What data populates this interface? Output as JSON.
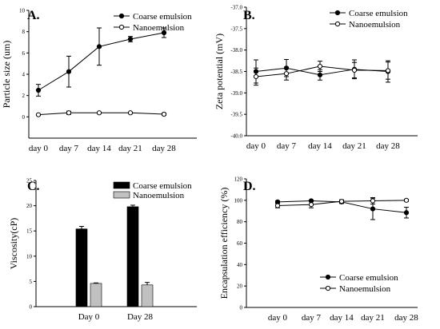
{
  "chart_data": [
    {
      "panel": "A.",
      "type": "line",
      "categories": [
        "day 0",
        "day 7",
        "day 14",
        "day 21",
        "day 28"
      ],
      "ylabel": "Particle size (um)",
      "ylim": [
        -2,
        10
      ],
      "yticks": [
        0,
        2,
        4,
        6,
        8,
        10
      ],
      "legend_position": "top-right",
      "series": [
        {
          "name": "Coarse emulsion",
          "marker": "filled-circle",
          "values": [
            2.5,
            4.25,
            6.6,
            7.3,
            7.9
          ],
          "errors": [
            0.55,
            1.45,
            1.75,
            0.25,
            0.45
          ]
        },
        {
          "name": "Nanoemulsion",
          "marker": "open-circle",
          "values": [
            0.2,
            0.38,
            0.38,
            0.38,
            0.25
          ],
          "errors": [
            0.05,
            0.15,
            0.05,
            0.05,
            0.1
          ]
        }
      ]
    },
    {
      "panel": "B.",
      "type": "line",
      "categories": [
        "day 0",
        "day 7",
        "day 14",
        "day 21",
        "day 28"
      ],
      "ylabel": "Zeta potential (mV)",
      "ylim": [
        -40.0,
        -37.0
      ],
      "yticks": [
        -40.0,
        -39.5,
        -39.0,
        -38.5,
        -38.0,
        -37.5,
        -37.0
      ],
      "legend_position": "top-right",
      "series": [
        {
          "name": "Coarse emulsion",
          "marker": "filled-circle",
          "values": [
            -38.5,
            -38.42,
            -38.58,
            -38.45,
            -38.5
          ],
          "errors": [
            0.27,
            0.2,
            0.12,
            0.22,
            0.25
          ]
        },
        {
          "name": "Nanoemulsion",
          "marker": "open-circle",
          "values": [
            -38.62,
            -38.55,
            -38.38,
            -38.47,
            -38.48
          ],
          "errors": [
            0.2,
            0.15,
            0.12,
            0.18,
            0.2
          ]
        }
      ]
    },
    {
      "panel": "C.",
      "type": "bar",
      "categories": [
        "Day 0",
        "Day 28"
      ],
      "ylabel": "Viscosity(cP)",
      "ylim": [
        0,
        25
      ],
      "yticks": [
        0,
        5,
        10,
        15,
        20,
        25
      ],
      "legend_position": "top-right",
      "series": [
        {
          "name": "Coarse emulsion",
          "color": "#000000",
          "values": [
            15.4,
            19.8
          ],
          "errors": [
            0.5,
            0.3
          ]
        },
        {
          "name": "Nanoemulsion",
          "color": "#c0c0c0",
          "values": [
            4.6,
            4.3
          ],
          "errors": [
            0.1,
            0.5
          ]
        }
      ]
    },
    {
      "panel": "D.",
      "type": "line",
      "categories": [
        "day 0",
        "day 7",
        "day 14",
        "day 21",
        "day 28"
      ],
      "ylabel": "Encapsulation efficiency (%)",
      "ylim": [
        0,
        120
      ],
      "yticks": [
        0,
        20,
        40,
        60,
        80,
        100,
        120
      ],
      "legend_position": "bottom-right",
      "series": [
        {
          "name": "Coarse emulsion",
          "marker": "filled-circle",
          "values": [
            98.5,
            99.5,
            98.5,
            92,
            88.5
          ],
          "errors": [
            1,
            0.8,
            1.5,
            10,
            5
          ]
        },
        {
          "name": "Nanoemulsion",
          "marker": "open-circle",
          "values": [
            95,
            96,
            99,
            99.5,
            100
          ],
          "errors": [
            2,
            3,
            1.5,
            3,
            1
          ]
        }
      ]
    }
  ]
}
